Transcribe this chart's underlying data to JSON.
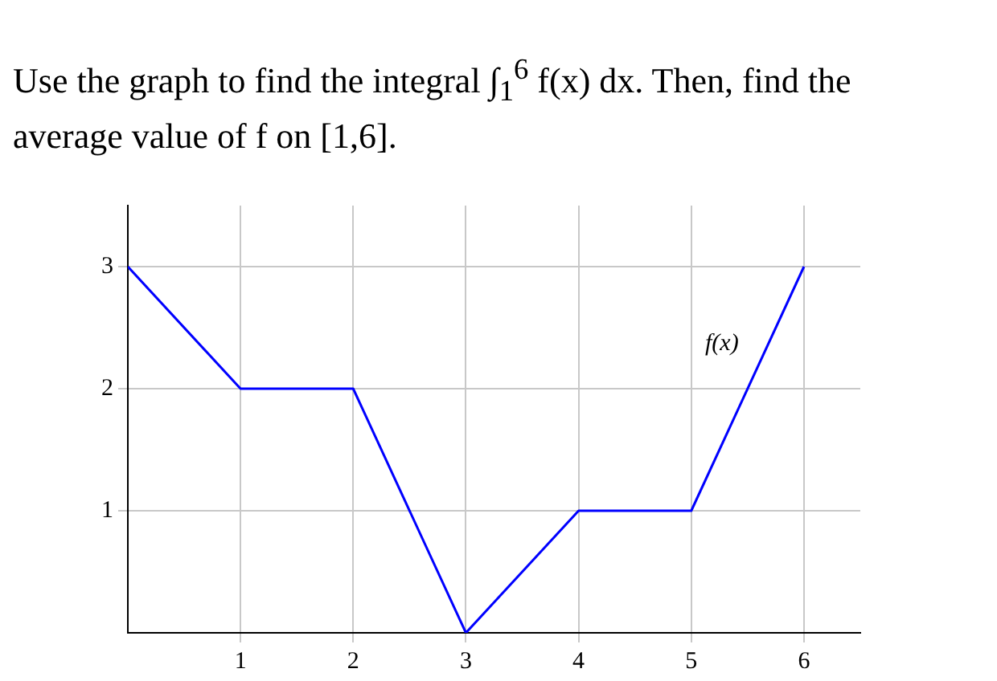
{
  "chart_data": {
    "type": "line",
    "title": "Use the graph to find the integral ∫$_{1}$$^{6}$ f(x) dx. Then, find the average value of f on [1,6].",
    "x": [
      0,
      1,
      2,
      3,
      4,
      5,
      6
    ],
    "series": [
      {
        "name": "f(x)",
        "color": "#0000ff",
        "values": [
          3,
          2,
          2,
          0,
          1,
          1,
          3
        ]
      }
    ],
    "xlim": [
      0,
      6.5
    ],
    "xticks": [
      1,
      2,
      3,
      4,
      5,
      6
    ],
    "ylim": [
      0,
      3.5
    ],
    "yticks": [
      1,
      2,
      3
    ],
    "grid": true,
    "legend": false,
    "marker": "none",
    "line_style": "solid"
  }
}
